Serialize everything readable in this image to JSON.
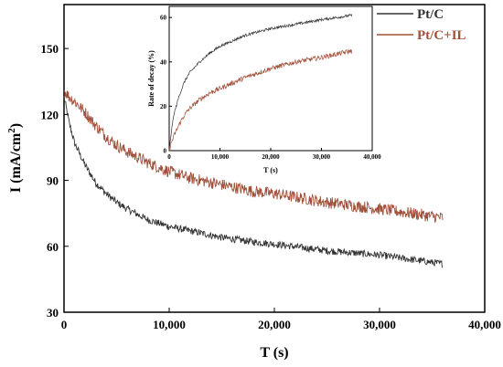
{
  "chart_data": [
    {
      "type": "line",
      "title": "",
      "xlabel": "T (s)",
      "ylabel": "I (mA/cm²)",
      "ylabel_parts": {
        "prefix": "I (mA/cm",
        "sup": "2",
        "suffix": ")"
      },
      "xlim": [
        0,
        40000
      ],
      "ylim": [
        30,
        170
      ],
      "xticks": [
        0,
        10000,
        20000,
        30000,
        40000
      ],
      "xtick_labels": [
        "0",
        "10,000",
        "20,000",
        "30,000",
        "40,000"
      ],
      "yticks": [
        30,
        60,
        90,
        120,
        150
      ],
      "ytick_labels": [
        "30",
        "60",
        "90",
        "120",
        "150"
      ],
      "legend_position": "top-right",
      "grid": false,
      "series": [
        {
          "name": "Pt/C",
          "color": "#333333",
          "x": [
            0,
            500,
            1000,
            2000,
            3000,
            4000,
            5000,
            6000,
            8000,
            10000,
            12000,
            15000,
            18000,
            20000,
            25000,
            30000,
            33000,
            36000
          ],
          "y": [
            128,
            116,
            107,
            97,
            89,
            84,
            80,
            77,
            72,
            69,
            67,
            64,
            62,
            61,
            58,
            56,
            54,
            52
          ]
        },
        {
          "name": "Pt/C+IL",
          "color": "#a0503a",
          "x": [
            0,
            500,
            1000,
            2000,
            3000,
            4000,
            5000,
            6000,
            8000,
            10000,
            12000,
            15000,
            18000,
            20000,
            25000,
            30000,
            33000,
            36000
          ],
          "y": [
            131,
            128,
            126,
            121,
            115,
            110,
            106,
            103,
            98,
            94,
            91,
            88,
            85,
            84,
            80,
            77,
            75,
            73
          ]
        }
      ]
    },
    {
      "type": "line",
      "title": "",
      "xlabel": "T (s)",
      "ylabel": "Rate of decay (%)",
      "xlim": [
        0,
        40000
      ],
      "ylim": [
        0,
        65
      ],
      "xticks": [
        0,
        10000,
        20000,
        30000,
        40000
      ],
      "xtick_labels": [
        "0",
        "10,000",
        "20,000",
        "30,000",
        "40,000"
      ],
      "yticks": [
        0,
        20,
        40,
        60
      ],
      "ytick_labels": [
        "0",
        "20",
        "40",
        "60"
      ],
      "grid": false,
      "series": [
        {
          "name": "Pt/C",
          "color": "#333333",
          "x": [
            0,
            500,
            1000,
            2000,
            3000,
            4000,
            6000,
            8000,
            10000,
            15000,
            20000,
            25000,
            30000,
            36000
          ],
          "y": [
            0,
            10,
            17,
            25,
            31,
            35,
            40,
            44,
            47,
            52,
            55,
            57,
            59,
            61
          ]
        },
        {
          "name": "Pt/C+IL",
          "color": "#a0503a",
          "x": [
            0,
            500,
            1000,
            2000,
            3000,
            4000,
            6000,
            8000,
            10000,
            15000,
            20000,
            25000,
            30000,
            36000
          ],
          "y": [
            0,
            4,
            7,
            12,
            16,
            19,
            23,
            26,
            28,
            33,
            37,
            40,
            42,
            45
          ]
        }
      ]
    }
  ]
}
